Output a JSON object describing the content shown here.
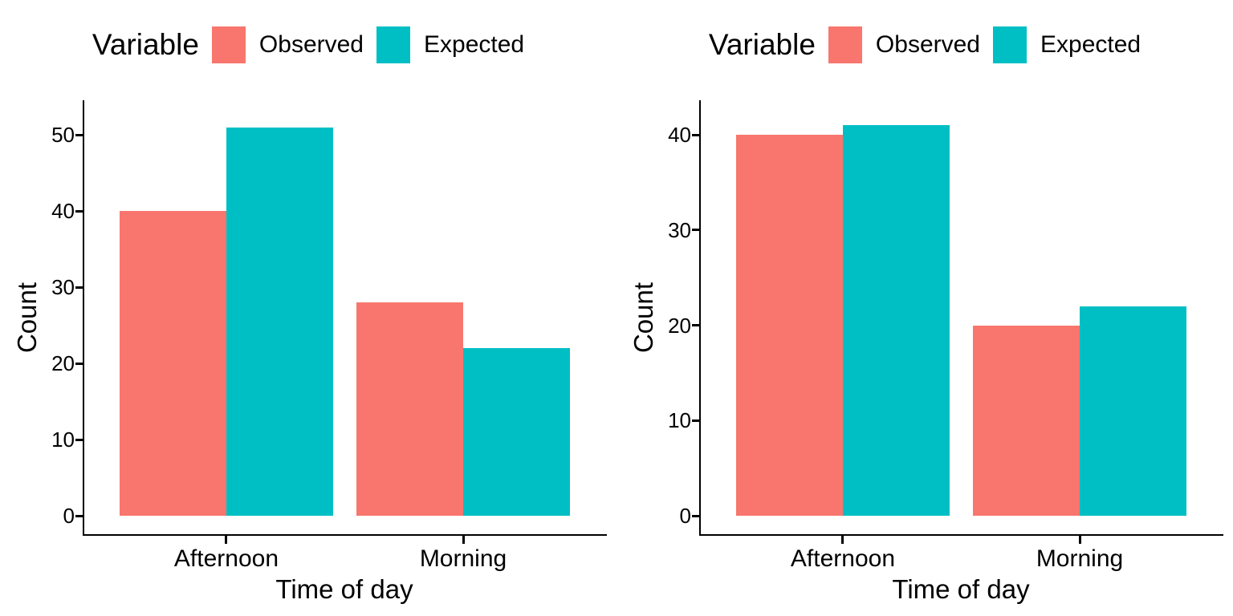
{
  "colors": {
    "observed": "#F8766D",
    "expected": "#00BFC4",
    "axis": "#000000",
    "background": "#ffffff"
  },
  "chart_data": [
    {
      "type": "bar",
      "title": "",
      "legend_title": "Variable",
      "legend_position": "top",
      "xlabel": "Time of day",
      "ylabel": "Count",
      "categories": [
        "Afternoon",
        "Morning"
      ],
      "series": [
        {
          "name": "Observed",
          "color": "#F8766D",
          "values": [
            40,
            28
          ]
        },
        {
          "name": "Expected",
          "color": "#00BFC4",
          "values": [
            51,
            22
          ]
        }
      ],
      "y_ticks": [
        0,
        10,
        20,
        30,
        40,
        50
      ],
      "ylim": [
        0,
        53.6
      ],
      "grid": false
    },
    {
      "type": "bar",
      "title": "",
      "legend_title": "Variable",
      "legend_position": "top",
      "xlabel": "Time of day",
      "ylabel": "Count",
      "categories": [
        "Afternoon",
        "Morning"
      ],
      "series": [
        {
          "name": "Observed",
          "color": "#F8766D",
          "values": [
            40,
            20
          ]
        },
        {
          "name": "Expected",
          "color": "#00BFC4",
          "values": [
            41,
            22
          ]
        }
      ],
      "y_ticks": [
        0,
        10,
        20,
        30,
        40
      ],
      "ylim": [
        0,
        43.1
      ],
      "grid": false
    }
  ]
}
